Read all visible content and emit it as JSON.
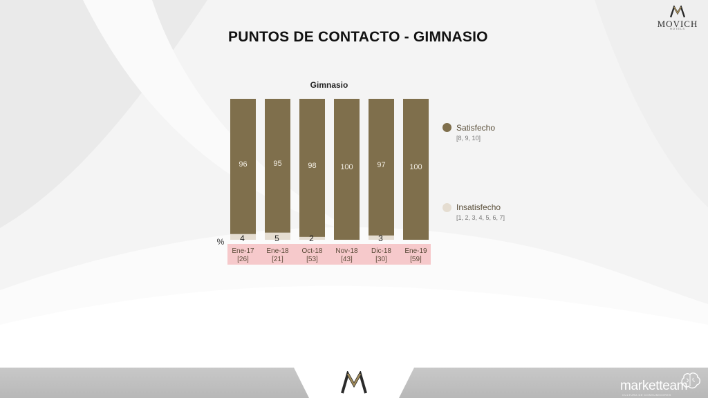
{
  "page": {
    "title": "PUNTOS DE CONTACTO - GIMNASIO"
  },
  "brand": {
    "name": "MOVICH",
    "subtitle": "HOTELS",
    "footer_name": "marketteam",
    "footer_subtitle": "CULTURA DE CONSUMIDORES"
  },
  "colors": {
    "satisfied": "#7f6f4c",
    "unsatisfied": "#e5ddd1",
    "category_band": "#f6c9cb"
  },
  "icons": [
    "movich-logo-icon",
    "movich-m-emblem-icon",
    "brain-icon"
  ],
  "chart_data": {
    "type": "bar",
    "stacked": true,
    "title": "Gimnasio",
    "unit_label": "%",
    "categories": [
      "Ene-17",
      "Ene-18",
      "Oct-18",
      "Nov-18",
      "Dic-18",
      "Ene-19"
    ],
    "sample_sizes": [
      "[26]",
      "[21]",
      "[53]",
      "[43]",
      "[30]",
      "[59]"
    ],
    "series": [
      {
        "name": "Insatisfecho",
        "scale": "[1, 2, 3, 4, 5, 6, 7]",
        "values": [
          4,
          5,
          2,
          0,
          3,
          0
        ],
        "labels": [
          "4",
          "5",
          "2",
          "",
          "3",
          ""
        ]
      },
      {
        "name": "Satisfecho",
        "scale": "[8, 9, 10]",
        "values": [
          96,
          95,
          98,
          100,
          97,
          100
        ],
        "labels": [
          "96",
          "95",
          "98",
          "100",
          "97",
          "100"
        ]
      }
    ],
    "ylim": [
      0,
      100
    ],
    "legend_position": "right"
  }
}
